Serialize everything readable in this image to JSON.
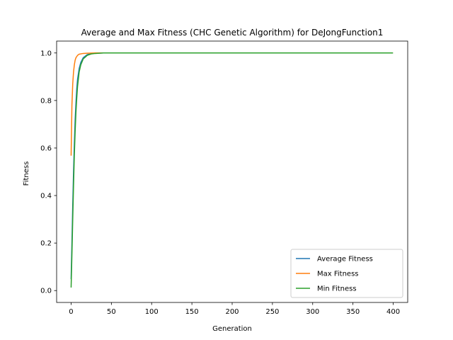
{
  "chart_data": {
    "type": "line",
    "title": "Average and Max Fitness (CHC Genetic Algorithm) for DeJongFunction1",
    "xlabel": "Generation",
    "ylabel": "Fitness",
    "xlim": [
      -18,
      418
    ],
    "ylim": [
      -0.05,
      1.05
    ],
    "xticks": [
      0,
      50,
      100,
      150,
      200,
      250,
      300,
      350,
      400
    ],
    "yticks": [
      0.0,
      0.2,
      0.4,
      0.6,
      0.8,
      1.0
    ],
    "xtick_labels": [
      "0",
      "50",
      "100",
      "150",
      "200",
      "250",
      "300",
      "350",
      "400"
    ],
    "ytick_labels": [
      "0.0",
      "0.2",
      "0.4",
      "0.6",
      "0.8",
      "1.0"
    ],
    "grid": false,
    "legend_position": "lower-right",
    "series": [
      {
        "name": "Average Fitness",
        "color": "#1f77b4",
        "x": [
          0,
          1,
          2,
          3,
          4,
          5,
          6,
          7,
          8,
          10,
          12,
          15,
          20,
          25,
          30,
          40,
          50,
          100,
          200,
          300,
          399
        ],
        "y": [
          0.05,
          0.2,
          0.36,
          0.5,
          0.62,
          0.72,
          0.79,
          0.85,
          0.89,
          0.935,
          0.96,
          0.98,
          0.993,
          0.997,
          0.999,
          1.0,
          1.0,
          1.0,
          1.0,
          1.0,
          1.0
        ]
      },
      {
        "name": "Max Fitness",
        "color": "#ff7f0e",
        "x": [
          0,
          1,
          2,
          3,
          4,
          5,
          6,
          8,
          10,
          15,
          20,
          30,
          50,
          100,
          200,
          300,
          399
        ],
        "y": [
          0.57,
          0.78,
          0.87,
          0.92,
          0.95,
          0.97,
          0.98,
          0.99,
          0.995,
          0.998,
          0.999,
          1.0,
          1.0,
          1.0,
          1.0,
          1.0,
          1.0
        ]
      },
      {
        "name": "Min Fitness",
        "color": "#2ca02c",
        "x": [
          0,
          1,
          2,
          3,
          4,
          5,
          6,
          7,
          8,
          10,
          12,
          15,
          20,
          25,
          30,
          40,
          50,
          100,
          200,
          300,
          399
        ],
        "y": [
          0.015,
          0.15,
          0.3,
          0.44,
          0.57,
          0.67,
          0.75,
          0.81,
          0.86,
          0.92,
          0.95,
          0.975,
          0.99,
          0.996,
          0.998,
          1.0,
          1.0,
          1.0,
          1.0,
          1.0,
          1.0
        ]
      }
    ]
  }
}
